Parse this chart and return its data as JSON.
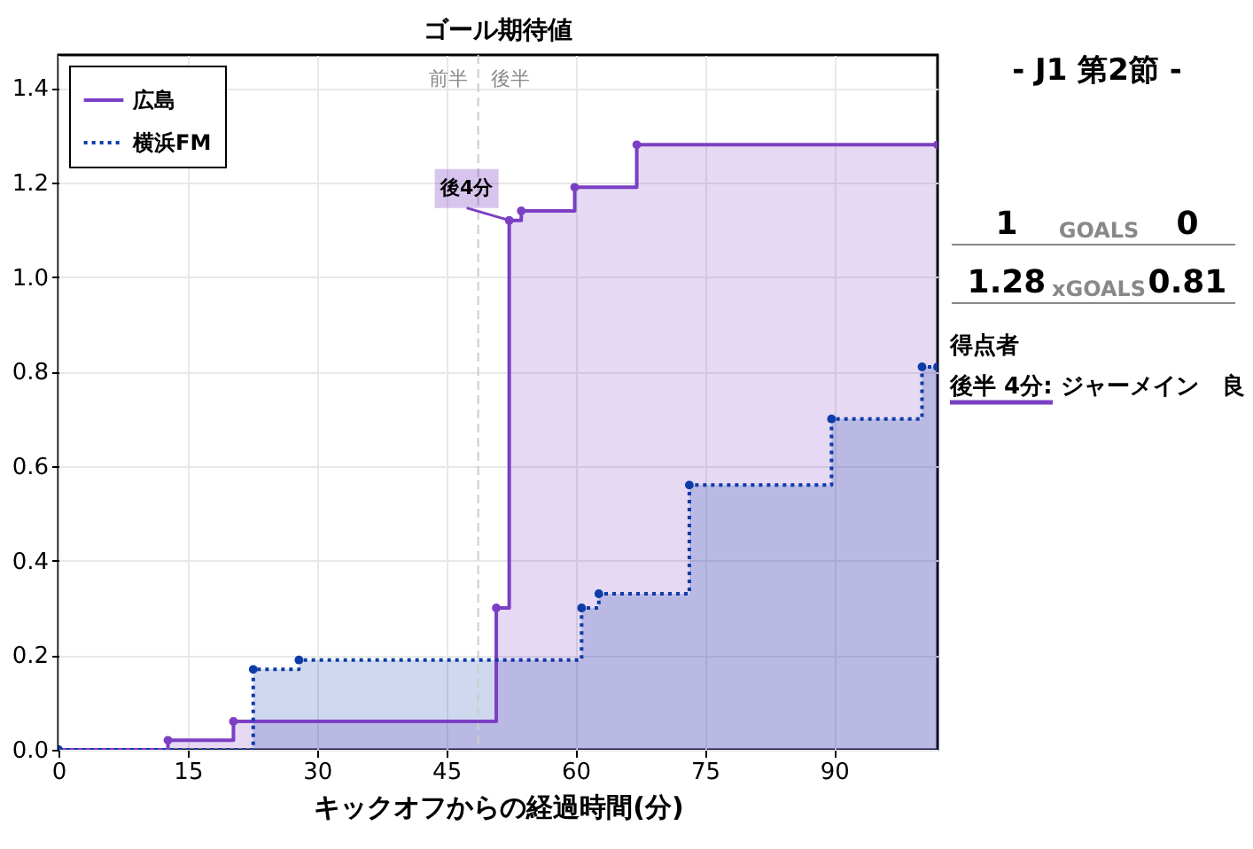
{
  "chart_data": [
    {
      "type": "step",
      "title": "ゴール期待値",
      "xlabel": "キックオフからの経過時間(分)",
      "series": [
        {
          "name": "広島",
          "color": "#7b3fc4",
          "type": "area",
          "line_style": "solid",
          "x": [
            0,
            12.7,
            20.3,
            50.8,
            52.3,
            53.7,
            59.9,
            67.1,
            102
          ],
          "values": [
            0,
            0.02,
            0.06,
            0.3,
            1.12,
            1.14,
            1.19,
            1.28,
            1.28
          ]
        },
        {
          "name": "横浜FM",
          "color": "#0d3ba8",
          "type": "area",
          "line_style": "dotted",
          "x": [
            0,
            22.6,
            27.9,
            60.7,
            62.7,
            73.2,
            89.7,
            100.2,
            102
          ],
          "values": [
            0,
            0.17,
            0.19,
            0.3,
            0.33,
            0.56,
            0.7,
            0.81,
            0.81
          ]
        }
      ],
      "xlim": [
        0,
        102
      ],
      "ylim": [
        0,
        1.47
      ],
      "xticks": [
        0,
        15,
        30,
        45,
        60,
        75,
        90
      ],
      "yticks": [
        {
          "value": 0,
          "label": "0.0"
        },
        0.2,
        0.4,
        0.6,
        0.8,
        {
          "value": 1,
          "label": "1.0"
        },
        1.2,
        1.4
      ],
      "ref_lines": [
        {
          "axis": "x",
          "value": 48.7,
          "label": "後半",
          "color": "#cccccc",
          "line_style": "dashed"
        }
      ],
      "annotations": [
        "前半",
        {
          "text": "後4分",
          "x": 52.3,
          "y": 1.12
        }
      ],
      "grid": true,
      "legend": "top left",
      "marker": "circle"
    },
    {
      "type": "other",
      "title": "- J1 第2節 -",
      "annotations": [
        "1",
        "GOALS",
        "0",
        "1.28",
        "xGOALS",
        "0.81",
        "得点者",
        "後半  4分: ジャーメイン　良"
      ]
    }
  ]
}
